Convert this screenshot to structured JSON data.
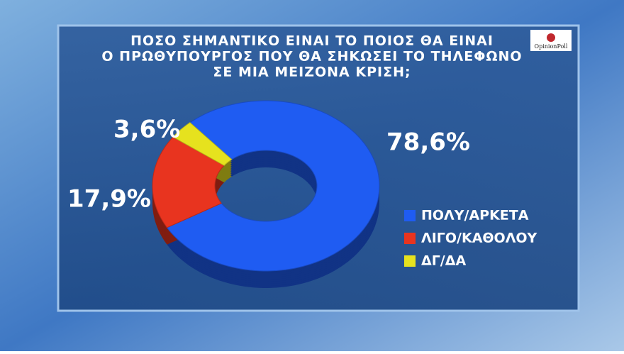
{
  "chart_data": {
    "type": "donut",
    "title": [
      "ΠΟΣΟ ΣΗΜΑΝΤΙΚΟ ΕΙΝΑΙ ΤΟ ΠΟΙΟΣ ΘΑ ΕΙΝΑΙ",
      "Ο ΠΡΩΘΥΠΟΥΡΓΟΣ ΠΟΥ ΘΑ ΣΗΚΩΣΕΙ ΤΟ ΤΗΛΕΦΩΝΟ",
      "ΣΕ ΜΙΑ ΜΕΙΖΟΝΑ ΚΡΙΣΗ;"
    ],
    "logo": "OpinionPoll",
    "categories": [
      "ΠΟΛΥ/ΑΡΚΕΤΑ",
      "ΛΙΓΟ/ΚΑΘΟΛΟΥ",
      "ΔΓ/ΔΑ"
    ],
    "values": [
      78.6,
      17.9,
      3.6
    ],
    "value_labels": [
      "78,6%",
      "17,9%",
      "3,6%"
    ],
    "colors": [
      "#1f5cf2",
      "#e8341f",
      "#e6e21e"
    ]
  }
}
